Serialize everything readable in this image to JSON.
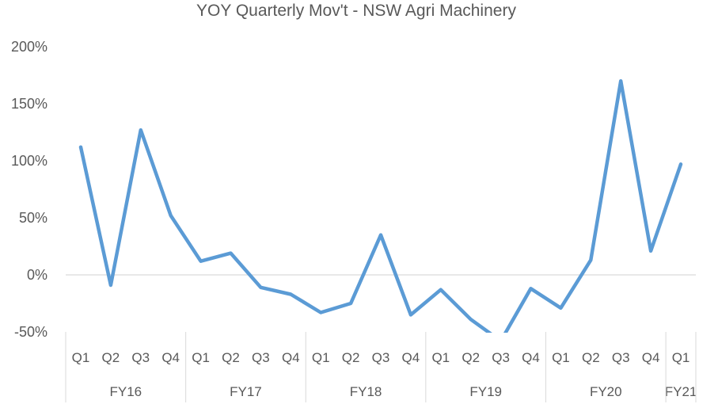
{
  "chart_data": {
    "type": "line",
    "title": "YOY Quarterly Mov't - NSW Agri Machinery",
    "xlabel": "",
    "ylabel": "",
    "ylim": [
      -50,
      200
    ],
    "yticks": [
      "200%",
      "150%",
      "100%",
      "50%",
      "0%",
      "-50%"
    ],
    "ytick_values": [
      200,
      150,
      100,
      50,
      0,
      -50
    ],
    "groups": [
      {
        "label": "FY16",
        "quarters": [
          "Q1",
          "Q2",
          "Q3",
          "Q4"
        ]
      },
      {
        "label": "FY17",
        "quarters": [
          "Q1",
          "Q2",
          "Q3",
          "Q4"
        ]
      },
      {
        "label": "FY18",
        "quarters": [
          "Q1",
          "Q2",
          "Q3",
          "Q4"
        ]
      },
      {
        "label": "FY19",
        "quarters": [
          "Q1",
          "Q2",
          "Q3",
          "Q4"
        ]
      },
      {
        "label": "FY20",
        "quarters": [
          "Q1",
          "Q2",
          "Q3",
          "Q4"
        ]
      },
      {
        "label": "FY21",
        "quarters": [
          "Q1"
        ]
      }
    ],
    "series": [
      {
        "values": [
          112,
          -9,
          127,
          52,
          12,
          19,
          -11,
          -17,
          -33,
          -25,
          35,
          -35,
          -13,
          -39,
          -58,
          -12,
          -29,
          13,
          170,
          21,
          97
        ]
      }
    ],
    "line_color": "#5b9bd5",
    "axis_color": "#d9d9d9",
    "grid": false,
    "legend": "none"
  }
}
